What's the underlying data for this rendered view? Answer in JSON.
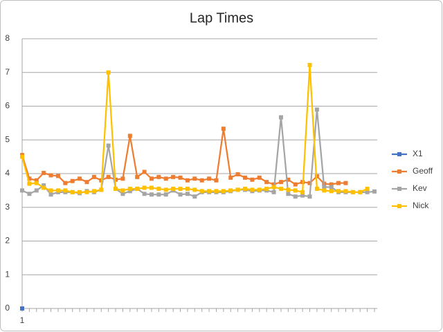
{
  "chart_data": {
    "type": "line",
    "title": "Lap Times",
    "categories": [
      "1",
      null,
      null,
      null,
      null,
      null,
      null,
      null,
      null,
      null,
      null,
      null,
      null,
      null,
      null,
      null,
      null,
      null,
      null,
      null,
      null,
      null,
      null,
      null,
      null,
      null,
      null,
      null,
      null,
      null,
      null,
      null,
      null,
      null,
      null,
      null,
      null,
      null,
      null,
      null,
      null,
      null,
      null,
      null,
      null,
      null,
      null,
      null,
      null,
      null
    ],
    "ylim": [
      0,
      8
    ],
    "yticks": [
      0,
      1,
      2,
      3,
      4,
      5,
      6,
      7,
      8
    ],
    "grid": true,
    "legend": "right",
    "series": [
      {
        "name": "X1",
        "color": "#4472c4",
        "values": [
          0,
          null,
          null,
          null,
          null,
          null,
          null,
          null,
          null,
          null,
          null,
          null,
          null,
          null,
          null,
          null,
          null,
          null,
          null,
          null,
          null,
          null,
          null,
          null,
          null,
          null,
          null,
          null,
          null,
          null,
          null,
          null,
          null,
          null,
          null,
          null,
          null,
          null,
          null,
          null,
          null,
          null,
          null,
          null,
          null,
          null,
          null,
          null,
          null,
          null
        ]
      },
      {
        "name": "Geoff",
        "color": "#ed7d31",
        "values": [
          4.55,
          3.85,
          3.8,
          4.02,
          3.95,
          3.93,
          3.72,
          3.78,
          3.85,
          3.75,
          3.9,
          3.8,
          3.9,
          3.82,
          3.85,
          5.12,
          3.9,
          4.05,
          3.85,
          3.9,
          3.85,
          3.9,
          3.88,
          3.8,
          3.85,
          3.8,
          3.85,
          3.8,
          5.33,
          3.88,
          3.98,
          3.88,
          3.82,
          3.88,
          3.75,
          3.68,
          3.75,
          3.82,
          3.68,
          3.75,
          3.72,
          3.92,
          3.7,
          3.68,
          3.72,
          3.72,
          null,
          null,
          null,
          null
        ]
      },
      {
        "name": "Kev",
        "color": "#a5a5a5",
        "values": [
          3.5,
          3.4,
          3.5,
          3.65,
          3.38,
          3.45,
          3.45,
          3.45,
          3.42,
          3.48,
          3.45,
          3.52,
          4.83,
          3.55,
          3.4,
          3.48,
          3.55,
          3.4,
          3.38,
          3.38,
          3.38,
          3.5,
          3.38,
          3.4,
          3.32,
          3.45,
          3.45,
          3.45,
          3.45,
          3.48,
          3.52,
          3.52,
          3.48,
          3.5,
          3.5,
          3.45,
          5.67,
          3.4,
          3.32,
          3.35,
          3.32,
          5.9,
          3.6,
          3.6,
          3.45,
          3.45,
          3.45,
          3.45,
          3.45,
          3.47
        ]
      },
      {
        "name": "Nick",
        "color": "#ffc000",
        "values": [
          4.5,
          3.7,
          3.72,
          3.58,
          3.5,
          3.5,
          3.5,
          3.45,
          3.45,
          3.45,
          3.48,
          3.52,
          7.0,
          3.55,
          3.5,
          3.55,
          3.55,
          3.58,
          3.58,
          3.55,
          3.52,
          3.55,
          3.55,
          3.55,
          3.52,
          3.48,
          3.48,
          3.48,
          3.48,
          3.5,
          3.52,
          3.55,
          3.52,
          3.52,
          3.55,
          3.6,
          3.55,
          3.52,
          3.5,
          3.45,
          7.22,
          3.55,
          3.5,
          3.48,
          3.48,
          3.48,
          3.45,
          3.45,
          3.55,
          null
        ]
      }
    ]
  }
}
